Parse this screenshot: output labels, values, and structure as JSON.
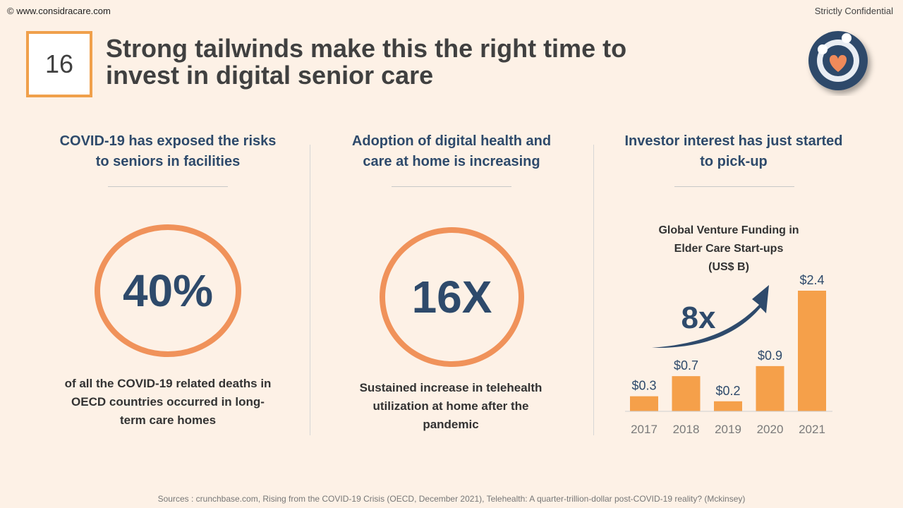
{
  "header": {
    "website": "© www.considracare.com",
    "confidential": "Strictly Confidential",
    "slide_number": "16",
    "title_line1": "Strong tailwinds make this the right time to",
    "title_line2": "invest in digital senior care"
  },
  "columns": [
    {
      "heading_line1": "COVID-19 has exposed the risks",
      "heading_line2": "to seniors in facilities",
      "stat": "40%",
      "desc_line1": "of all the COVID-19 related deaths in",
      "desc_line2": "OECD countries occurred in long-",
      "desc_line3": "term care homes"
    },
    {
      "heading_line1": "Adoption of digital health and",
      "heading_line2": "care at home is increasing",
      "stat": "16X",
      "desc_line1": "Sustained increase in telehealth",
      "desc_line2": "utilization at home after the",
      "desc_line3": "pandemic"
    },
    {
      "heading_line1": "Investor interest has just started",
      "heading_line2": "to pick-up"
    }
  ],
  "chart_data": {
    "type": "bar",
    "title_line1": "Global Venture Funding in",
    "title_line2": "Elder Care Start-ups",
    "title_line3": "(US$ B)",
    "categories": [
      "2017",
      "2018",
      "2019",
      "2020",
      "2021"
    ],
    "values": [
      0.3,
      0.7,
      0.2,
      0.9,
      2.4
    ],
    "data_labels": [
      "$0.3",
      "$0.7",
      "$0.2",
      "$0.9",
      "$2.4"
    ],
    "annotation": "8x",
    "bar_color": "#f5a04a",
    "arrow_color": "#2e4a6b"
  },
  "footer": {
    "sources": "Sources : crunchbase.com, Rising from the COVID-19 Crisis (OECD, December 2021), Telehealth: A quarter-trillion-dollar post-COVID-19 reality? (Mckinsey)"
  },
  "colors": {
    "accent_orange": "#f0a04b",
    "navy": "#2e4a6b",
    "background": "#fdf1e6"
  }
}
